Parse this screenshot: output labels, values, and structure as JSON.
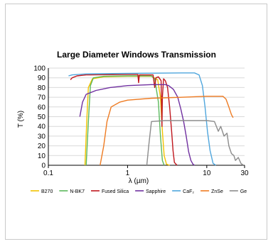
{
  "chart_data": {
    "type": "line",
    "title": "Large Diameter Windows Transmission",
    "xlabel": "λ (µm)",
    "ylabel": "T (%)",
    "x_scale": "log",
    "xlim": [
      0.1,
      30
    ],
    "ylim": [
      0,
      100
    ],
    "x_ticks": [
      "0.1",
      "1",
      "10",
      "30"
    ],
    "x_tick_values": [
      0.1,
      1,
      10,
      30
    ],
    "y_ticks": [
      0,
      10,
      20,
      30,
      40,
      50,
      60,
      70,
      80,
      90,
      100
    ],
    "grid": "horizontal",
    "legend_position": "bottom",
    "series": [
      {
        "name": "B270",
        "color": "#f2c200",
        "points": [
          [
            0.29,
            0
          ],
          [
            0.305,
            45
          ],
          [
            0.32,
            80
          ],
          [
            0.36,
            89
          ],
          [
            0.5,
            91
          ],
          [
            1,
            91.5
          ],
          [
            2,
            91.5
          ],
          [
            2.4,
            88
          ],
          [
            2.6,
            70
          ],
          [
            2.75,
            35
          ],
          [
            2.9,
            10
          ],
          [
            3.1,
            1
          ],
          [
            3.4,
            0
          ]
        ]
      },
      {
        "name": "N-BK7",
        "color": "#5cb85c",
        "points": [
          [
            0.3,
            0
          ],
          [
            0.32,
            45
          ],
          [
            0.34,
            82
          ],
          [
            0.37,
            90
          ],
          [
            0.5,
            91.5
          ],
          [
            1,
            92
          ],
          [
            2,
            92
          ],
          [
            2.2,
            89
          ],
          [
            2.45,
            65
          ],
          [
            2.6,
            30
          ],
          [
            2.75,
            5
          ],
          [
            2.9,
            0
          ]
        ]
      },
      {
        "name": "Fused Silica",
        "color": "#c0171e",
        "points": [
          [
            0.19,
            88
          ],
          [
            0.2,
            90
          ],
          [
            0.23,
            92
          ],
          [
            0.3,
            93
          ],
          [
            1,
            93.5
          ],
          [
            1.35,
            93.5
          ],
          [
            1.38,
            85
          ],
          [
            1.41,
            93
          ],
          [
            2.1,
            93
          ],
          [
            2.2,
            80
          ],
          [
            2.28,
            90
          ],
          [
            2.45,
            91
          ],
          [
            2.65,
            87
          ],
          [
            2.72,
            40
          ],
          [
            2.75,
            70
          ],
          [
            2.85,
            89
          ],
          [
            3.0,
            87
          ],
          [
            3.2,
            80
          ],
          [
            3.4,
            60
          ],
          [
            3.6,
            35
          ],
          [
            3.75,
            15
          ],
          [
            3.9,
            3
          ],
          [
            4.2,
            0
          ]
        ]
      },
      {
        "name": "Sapphire",
        "color": "#7030a0",
        "points": [
          [
            0.25,
            50
          ],
          [
            0.27,
            65
          ],
          [
            0.3,
            73
          ],
          [
            0.4,
            77
          ],
          [
            0.6,
            80
          ],
          [
            1,
            82
          ],
          [
            2,
            83
          ],
          [
            3,
            83
          ],
          [
            3.3,
            82
          ],
          [
            3.8,
            78
          ],
          [
            4.3,
            70
          ],
          [
            4.7,
            58
          ],
          [
            5.1,
            45
          ],
          [
            5.5,
            30
          ],
          [
            5.9,
            14
          ],
          [
            6.3,
            5
          ],
          [
            6.7,
            1
          ],
          [
            7,
            0
          ]
        ]
      },
      {
        "name": "CaF₂",
        "color": "#4fa6dd",
        "points": [
          [
            0.18,
            92
          ],
          [
            0.2,
            93
          ],
          [
            0.3,
            94
          ],
          [
            1,
            94.5
          ],
          [
            5,
            95
          ],
          [
            7,
            95
          ],
          [
            8,
            93
          ],
          [
            8.8,
            82
          ],
          [
            9.5,
            60
          ],
          [
            10.2,
            35
          ],
          [
            11,
            15
          ],
          [
            12,
            2
          ],
          [
            13,
            0
          ]
        ]
      },
      {
        "name": "ZnSe",
        "color": "#ee7b22",
        "points": [
          [
            0.45,
            0
          ],
          [
            0.5,
            20
          ],
          [
            0.55,
            45
          ],
          [
            0.62,
            60
          ],
          [
            0.8,
            65
          ],
          [
            1,
            67
          ],
          [
            2,
            69
          ],
          [
            5,
            70
          ],
          [
            10,
            71
          ],
          [
            16,
            71
          ],
          [
            17.5,
            68
          ],
          [
            19,
            60
          ],
          [
            20.5,
            52
          ],
          [
            21.5,
            49
          ]
        ]
      },
      {
        "name": "Ge",
        "color": "#8c8c8c",
        "points": [
          [
            1.75,
            0
          ],
          [
            1.85,
            20
          ],
          [
            2,
            45
          ],
          [
            3,
            46
          ],
          [
            10,
            46
          ],
          [
            12.5,
            45
          ],
          [
            14,
            35
          ],
          [
            15,
            40
          ],
          [
            16.5,
            30
          ],
          [
            18,
            33
          ],
          [
            19,
            20
          ],
          [
            20.5,
            12
          ],
          [
            22,
            10
          ],
          [
            23,
            5
          ],
          [
            25,
            8
          ],
          [
            27,
            2
          ],
          [
            29,
            0
          ]
        ]
      }
    ]
  }
}
